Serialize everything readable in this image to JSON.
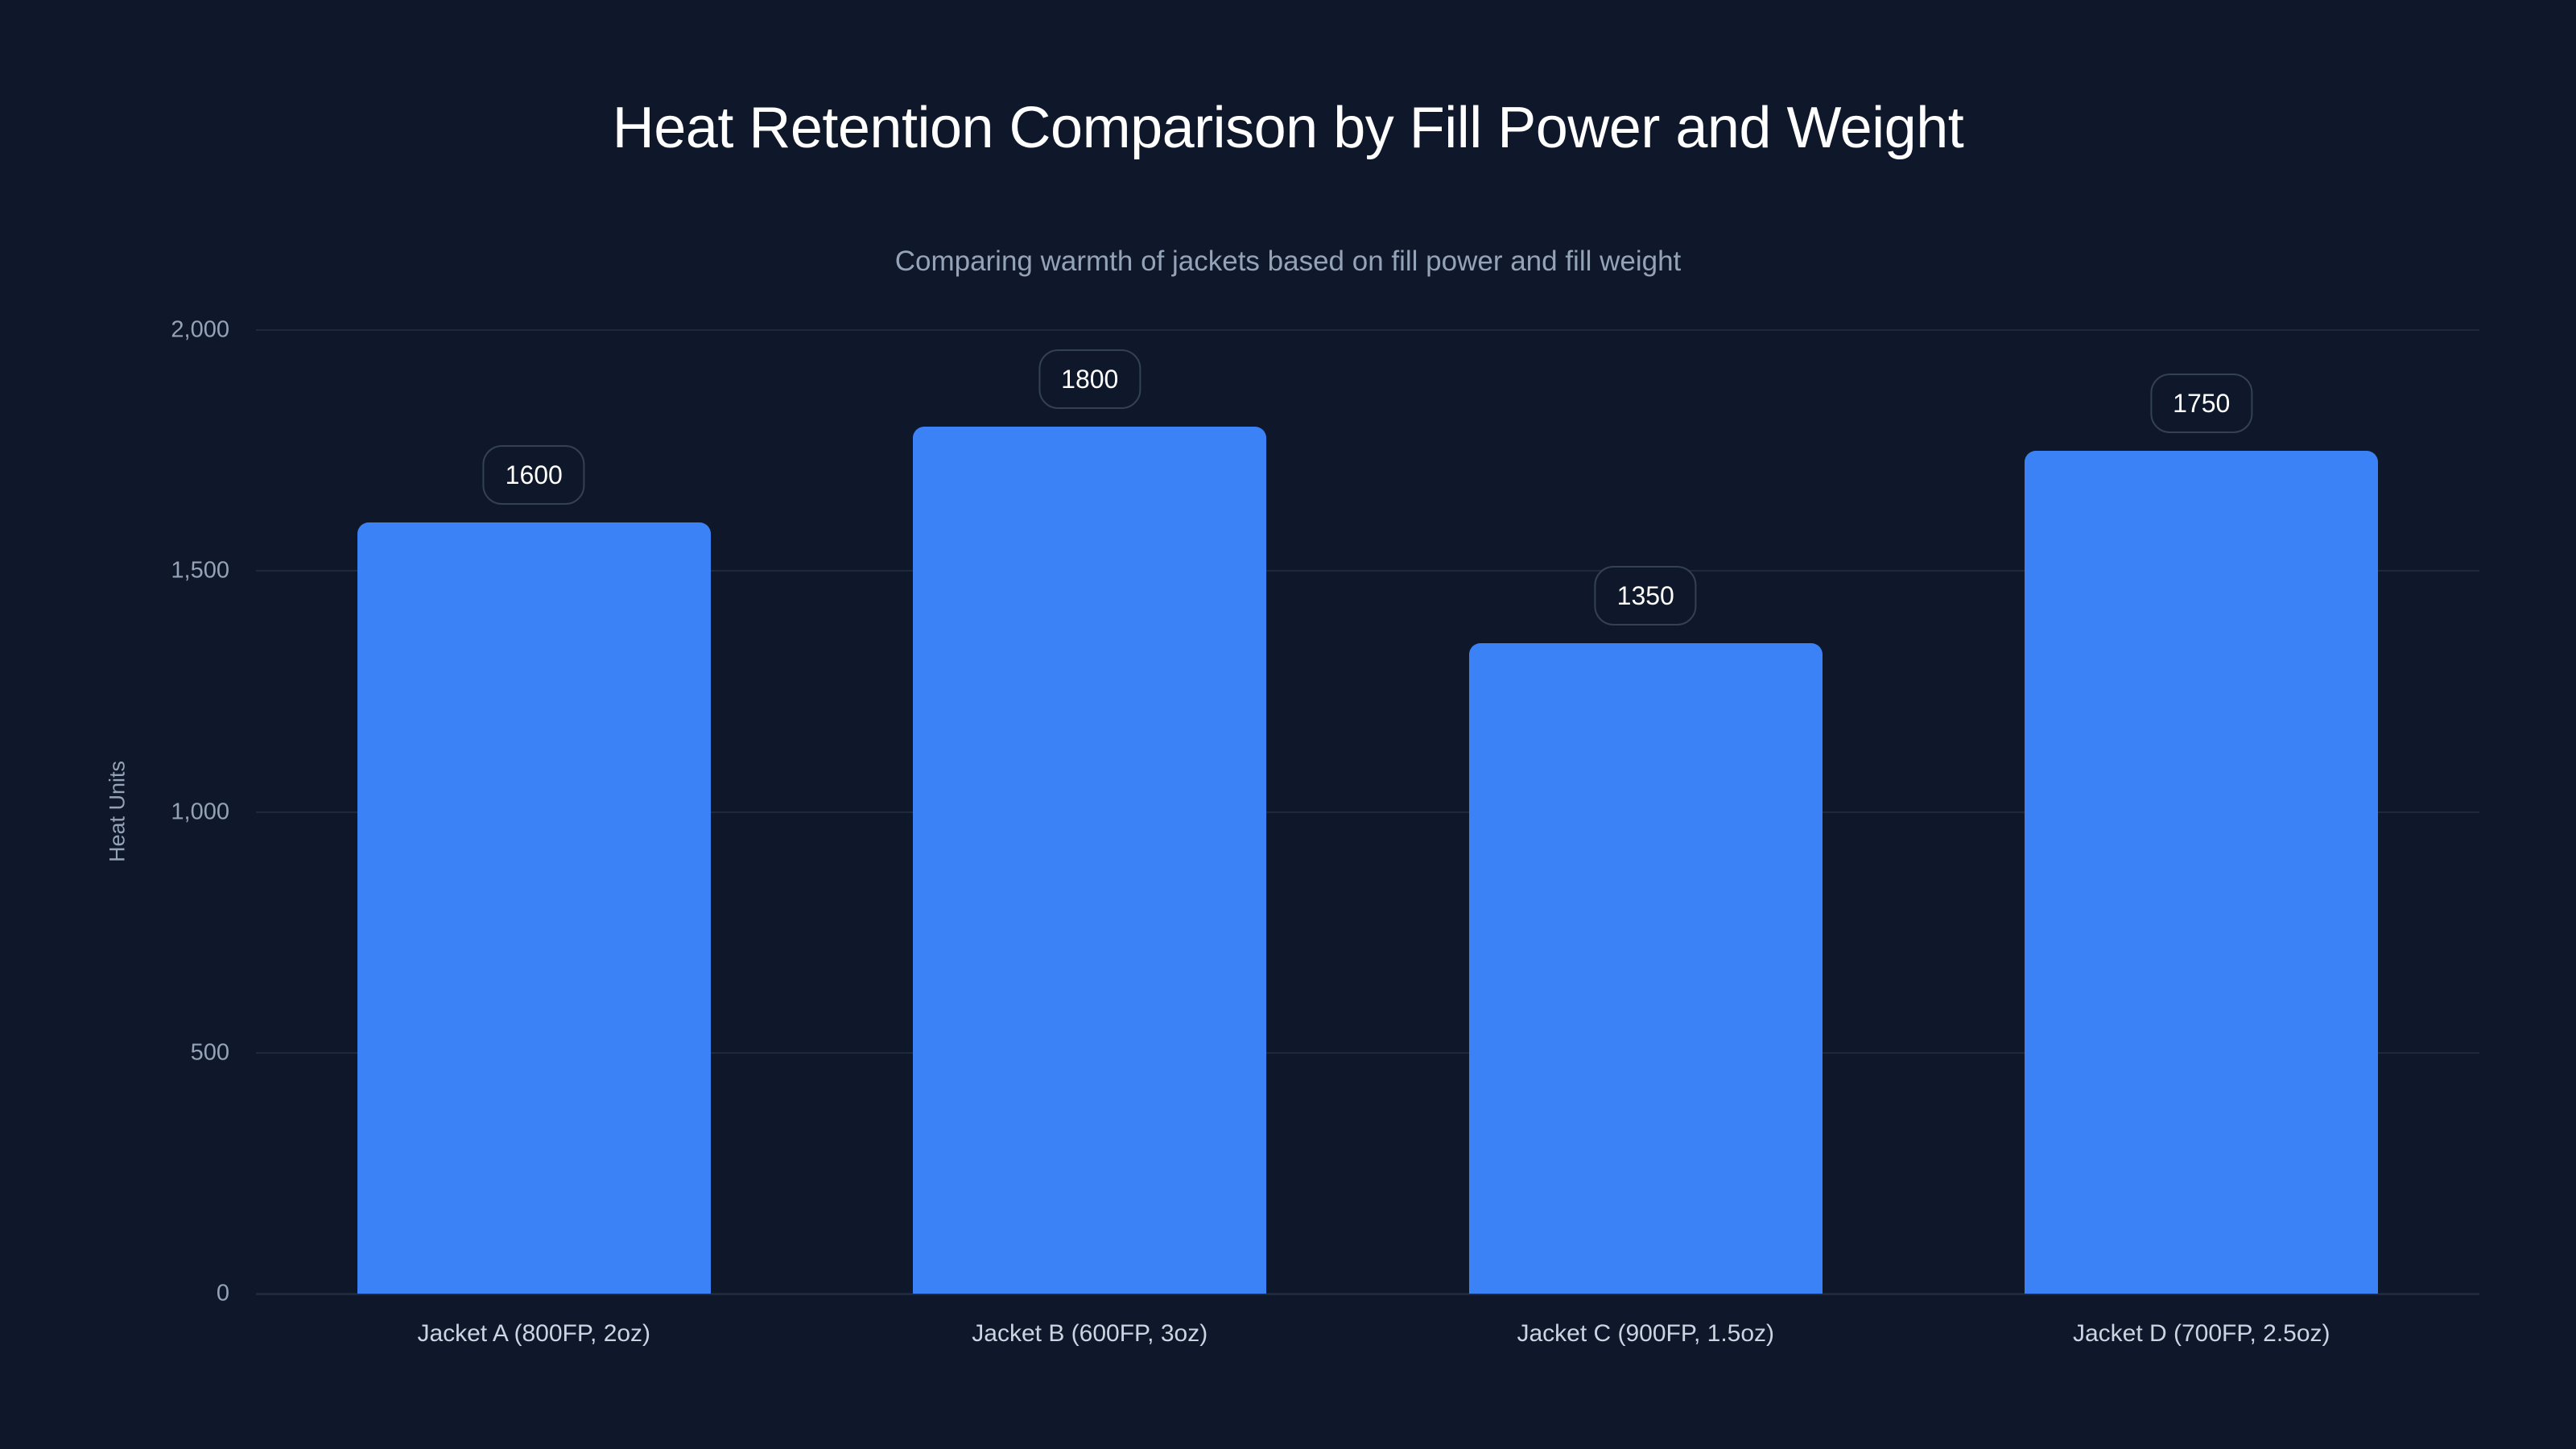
{
  "title": "Heat Retention Comparison by Fill Power and Weight",
  "subtitle": "Comparing warmth of jackets based on fill power and fill weight",
  "colors": {
    "background": "#0f172a",
    "bar": "#3b82f6",
    "grid": "#1e293b",
    "axis_text": "#94a3b8",
    "badge_border": "#334155"
  },
  "chart_data": {
    "type": "bar",
    "title": "Heat Retention Comparison by Fill Power and Weight",
    "subtitle": "Comparing warmth of jackets based on fill power and fill weight",
    "categories": [
      "Jacket A (800FP, 2oz)",
      "Jacket B (600FP, 3oz)",
      "Jacket C (900FP, 1.5oz)",
      "Jacket D (700FP, 2.5oz)"
    ],
    "values": [
      1600,
      1800,
      1350,
      1750
    ],
    "data_labels": [
      "1600",
      "1800",
      "1350",
      "1750"
    ],
    "xlabel": "",
    "ylabel": "Heat Units",
    "ylim": [
      0,
      2000
    ],
    "yticks": [
      0,
      500,
      1000,
      1500,
      2000
    ],
    "ytick_labels": [
      "0",
      "500",
      "1,000",
      "1,500",
      "2,000"
    ],
    "grid": true,
    "legend": null
  }
}
